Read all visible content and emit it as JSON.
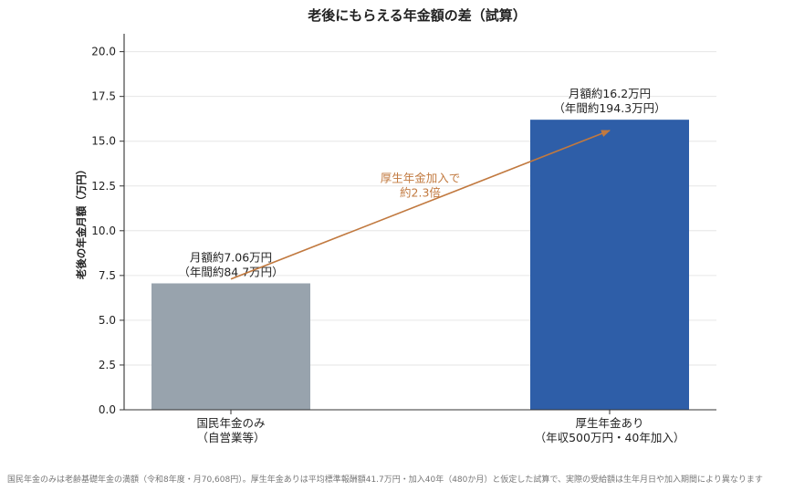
{
  "chart_data": {
    "type": "bar",
    "title": "老後にもらえる年金額の差（試算）",
    "ylabel": "老後の年金月額（万円）",
    "xlabel": "",
    "ylim": [
      0,
      21
    ],
    "yticks": [
      0.0,
      2.5,
      5.0,
      7.5,
      10.0,
      12.5,
      15.0,
      17.5,
      20.0
    ],
    "ytick_labels": [
      "0.0",
      "2.5",
      "5.0",
      "7.5",
      "10.0",
      "12.5",
      "15.0",
      "17.5",
      "20.0"
    ],
    "grid": true,
    "categories": [
      {
        "line1": "国民年金のみ",
        "line2": "（自営業等）"
      },
      {
        "line1": "厚生年金あり",
        "line2": "（年収500万円・40年加入）"
      }
    ],
    "values": [
      7.06,
      16.2
    ],
    "colors": [
      "#98a3ad",
      "#2e5ea8"
    ],
    "data_labels": [
      {
        "line1": "月額約7.06万円",
        "line2": "（年間約84.7万円）"
      },
      {
        "line1": "月額約16.2万円",
        "line2": "（年間約194.3万円）"
      }
    ],
    "annotation": {
      "line1": "厚生年金加入で",
      "line2": "約2.3倍",
      "color": "#c1793f",
      "from": {
        "category": 0,
        "y": 7.3
      },
      "to": {
        "category": 1,
        "y": 15.6
      }
    }
  },
  "footnote": "国民年金のみは老齢基礎年金の満額（令和8年度・月70,608円）。厚生年金ありは平均標準報酬額41.7万円・加入40年（480か月）と仮定した試算で、実際の受給額は生年月日や加入期間により異なります"
}
